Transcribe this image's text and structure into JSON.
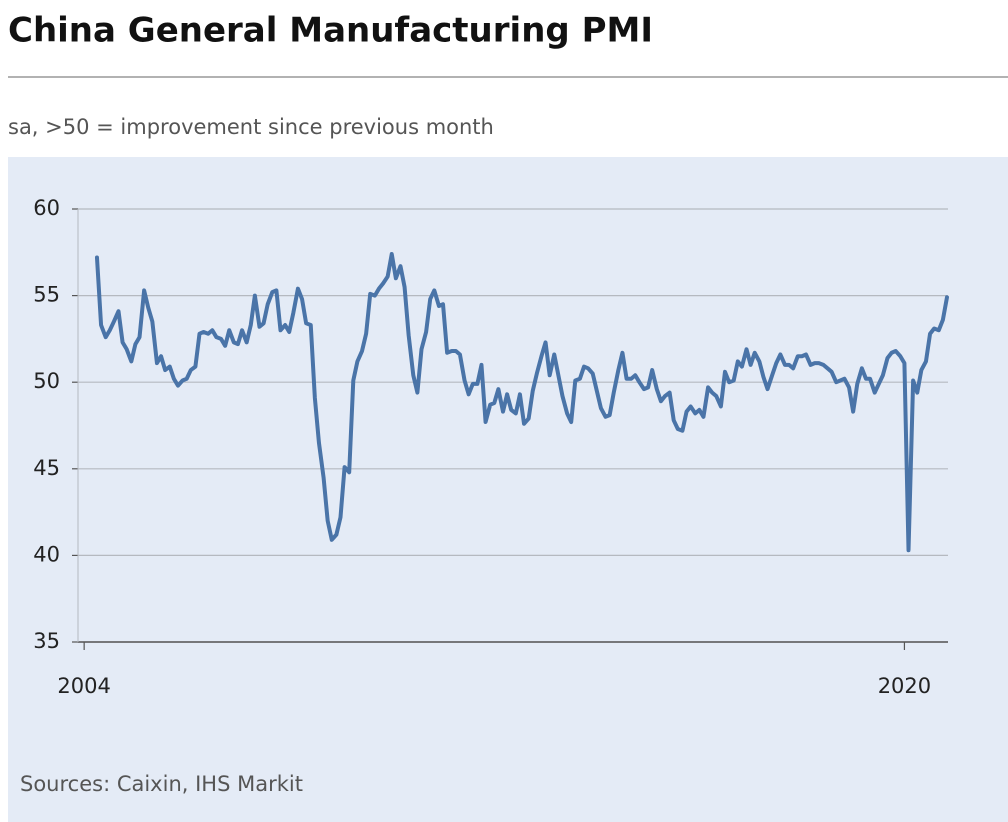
{
  "chart_data": {
    "type": "line",
    "title": "China General Manufacturing PMI",
    "subtitle": "sa, >50 = improvement since previous month",
    "source": "Sources: Caixin, IHS Markit",
    "xlim": [
      2003.88,
      2020.85
    ],
    "xticks": [
      2004,
      2020
    ],
    "ylim": [
      35,
      60
    ],
    "yticks": [
      60,
      55,
      50,
      45,
      40,
      35
    ],
    "grid": true,
    "x": [
      2004.25,
      2004.33,
      2004.42,
      2004.5,
      2004.58,
      2004.67,
      2004.75,
      2004.83,
      2004.92,
      2005,
      2005.08,
      2005.17,
      2005.25,
      2005.33,
      2005.42,
      2005.5,
      2005.58,
      2005.67,
      2005.75,
      2005.83,
      2005.92,
      2006,
      2006.08,
      2006.17,
      2006.25,
      2006.33,
      2006.42,
      2006.5,
      2006.58,
      2006.67,
      2006.75,
      2006.83,
      2006.92,
      2007,
      2007.08,
      2007.17,
      2007.25,
      2007.33,
      2007.42,
      2007.5,
      2007.58,
      2007.67,
      2007.75,
      2007.83,
      2007.92,
      2008,
      2008.08,
      2008.17,
      2008.25,
      2008.33,
      2008.42,
      2008.5,
      2008.58,
      2008.67,
      2008.75,
      2008.83,
      2008.92,
      2009,
      2009.08,
      2009.17,
      2009.25,
      2009.33,
      2009.42,
      2009.5,
      2009.58,
      2009.67,
      2009.75,
      2009.83,
      2009.92,
      2010,
      2010.08,
      2010.17,
      2010.25,
      2010.33,
      2010.42,
      2010.5,
      2010.58,
      2010.67,
      2010.75,
      2010.83,
      2010.92,
      2011,
      2011.08,
      2011.17,
      2011.25,
      2011.33,
      2011.42,
      2011.5,
      2011.58,
      2011.67,
      2011.75,
      2011.83,
      2011.92,
      2012,
      2012.08,
      2012.17,
      2012.25,
      2012.33,
      2012.42,
      2012.5,
      2012.58,
      2012.67,
      2012.75,
      2012.83,
      2012.92,
      2013,
      2013.08,
      2013.17,
      2013.25,
      2013.33,
      2013.42,
      2013.5,
      2013.58,
      2013.67,
      2013.75,
      2013.83,
      2013.92,
      2014,
      2014.08,
      2014.17,
      2014.25,
      2014.33,
      2014.42,
      2014.5,
      2014.58,
      2014.67,
      2014.75,
      2014.83,
      2014.92,
      2015,
      2015.08,
      2015.17,
      2015.25,
      2015.33,
      2015.42,
      2015.5,
      2015.58,
      2015.67,
      2015.75,
      2015.83,
      2015.92,
      2016,
      2016.08,
      2016.17,
      2016.25,
      2016.33,
      2016.42,
      2016.5,
      2016.58,
      2016.67,
      2016.75,
      2016.83,
      2016.92,
      2017,
      2017.08,
      2017.17,
      2017.25,
      2017.33,
      2017.42,
      2017.5,
      2017.58,
      2017.67,
      2017.75,
      2017.83,
      2017.92,
      2018,
      2018.08,
      2018.17,
      2018.25,
      2018.33,
      2018.42,
      2018.5,
      2018.58,
      2018.67,
      2018.75,
      2018.83,
      2018.92,
      2019,
      2019.08,
      2019.17,
      2019.25,
      2019.33,
      2019.42,
      2019.5,
      2019.58,
      2019.67,
      2019.75,
      2019.83,
      2019.92,
      2020,
      2020.08,
      2020.17,
      2020.25,
      2020.33,
      2020.42,
      2020.5,
      2020.58,
      2020.67,
      2020.75,
      2020.83
    ],
    "series": [
      {
        "color": "#4a74a8",
        "values": [
          57.2,
          53.3,
          52.6,
          53.0,
          53.5,
          54.1,
          52.3,
          51.9,
          51.2,
          52.2,
          52.6,
          55.3,
          54.3,
          53.5,
          51.1,
          51.5,
          50.7,
          50.9,
          50.2,
          49.8,
          50.1,
          50.2,
          50.7,
          50.9,
          52.8,
          52.9,
          52.8,
          53.0,
          52.6,
          52.5,
          52.1,
          53.0,
          52.3,
          52.2,
          53.0,
          52.3,
          53.3,
          55.0,
          53.2,
          53.4,
          54.5,
          55.2,
          55.3,
          53.0,
          53.3,
          52.9,
          54.0,
          55.4,
          54.8,
          53.4,
          53.3,
          49.1,
          46.5,
          44.5,
          42.0,
          40.9,
          41.2,
          42.2,
          45.1,
          44.8,
          50.1,
          51.2,
          51.8,
          52.8,
          55.1,
          55.0,
          55.4,
          55.7,
          56.1,
          57.4,
          56.0,
          56.7,
          55.5,
          52.7,
          50.4,
          49.4,
          51.9,
          52.9,
          54.8,
          55.3,
          54.4,
          54.5,
          51.7,
          51.8,
          51.8,
          51.6,
          50.1,
          49.3,
          49.9,
          49.9,
          51.0,
          47.7,
          48.7,
          48.8,
          49.6,
          48.3,
          49.3,
          48.4,
          48.2,
          49.3,
          47.6,
          47.9,
          49.5,
          50.5,
          51.5,
          52.3,
          50.4,
          51.6,
          50.4,
          49.2,
          48.2,
          47.7,
          50.1,
          50.2,
          50.9,
          50.8,
          50.5,
          49.5,
          48.5,
          48.0,
          48.1,
          49.4,
          50.7,
          51.7,
          50.2,
          50.2,
          50.4,
          50.0,
          49.6,
          49.7,
          50.7,
          49.6,
          48.9,
          49.2,
          49.4,
          47.8,
          47.3,
          47.2,
          48.3,
          48.6,
          48.2,
          48.4,
          48.0,
          49.7,
          49.4,
          49.2,
          48.6,
          50.6,
          50.0,
          50.1,
          51.2,
          50.9,
          51.9,
          51.0,
          51.7,
          51.2,
          50.3,
          49.6,
          50.4,
          51.1,
          51.6,
          51.0,
          51.0,
          50.8,
          51.5,
          51.5,
          51.6,
          51.0,
          51.1,
          51.1,
          51.0,
          50.8,
          50.6,
          50.0,
          50.1,
          50.2,
          49.7,
          48.3,
          49.9,
          50.8,
          50.2,
          50.2,
          49.4,
          49.9,
          50.4,
          51.4,
          51.7,
          51.8,
          51.5,
          51.1,
          40.3,
          50.1,
          49.4,
          50.7,
          51.2,
          52.8,
          53.1,
          53.0,
          53.6,
          54.9
        ]
      }
    ]
  }
}
